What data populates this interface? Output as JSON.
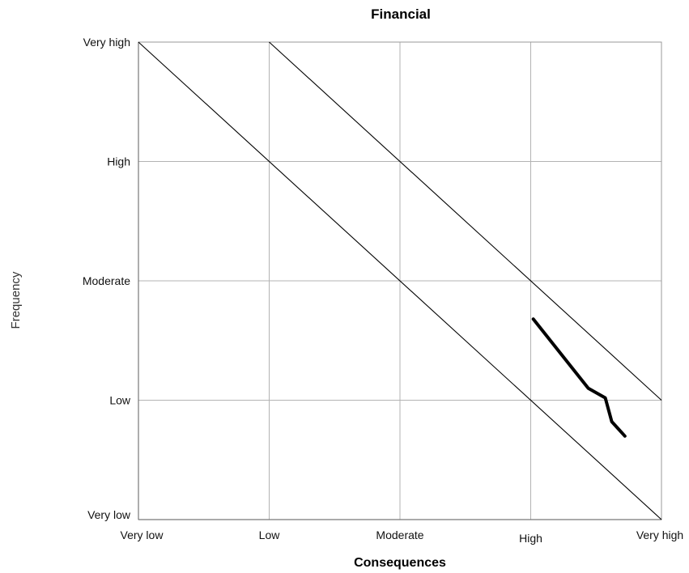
{
  "chart_data": {
    "type": "line",
    "title": "Financial",
    "xlabel": "Consequences",
    "ylabel": "Frequency",
    "x_categories": [
      "Very low",
      "Low",
      "Moderate",
      "High",
      "Very high"
    ],
    "y_categories": [
      "Very low",
      "Low",
      "Moderate",
      "High",
      "Very high"
    ],
    "xlim": [
      0,
      4
    ],
    "ylim": [
      0,
      4
    ],
    "grid": true,
    "reference_lines": [
      {
        "points": [
          [
            0,
            4
          ],
          [
            4,
            0
          ]
        ]
      },
      {
        "points": [
          [
            1,
            4
          ],
          [
            4,
            1
          ]
        ]
      }
    ],
    "series": [
      {
        "points": [
          [
            3.02,
            1.68
          ],
          [
            3.44,
            1.1
          ],
          [
            3.57,
            1.02
          ],
          [
            3.62,
            0.82
          ],
          [
            3.72,
            0.7
          ]
        ]
      }
    ]
  }
}
